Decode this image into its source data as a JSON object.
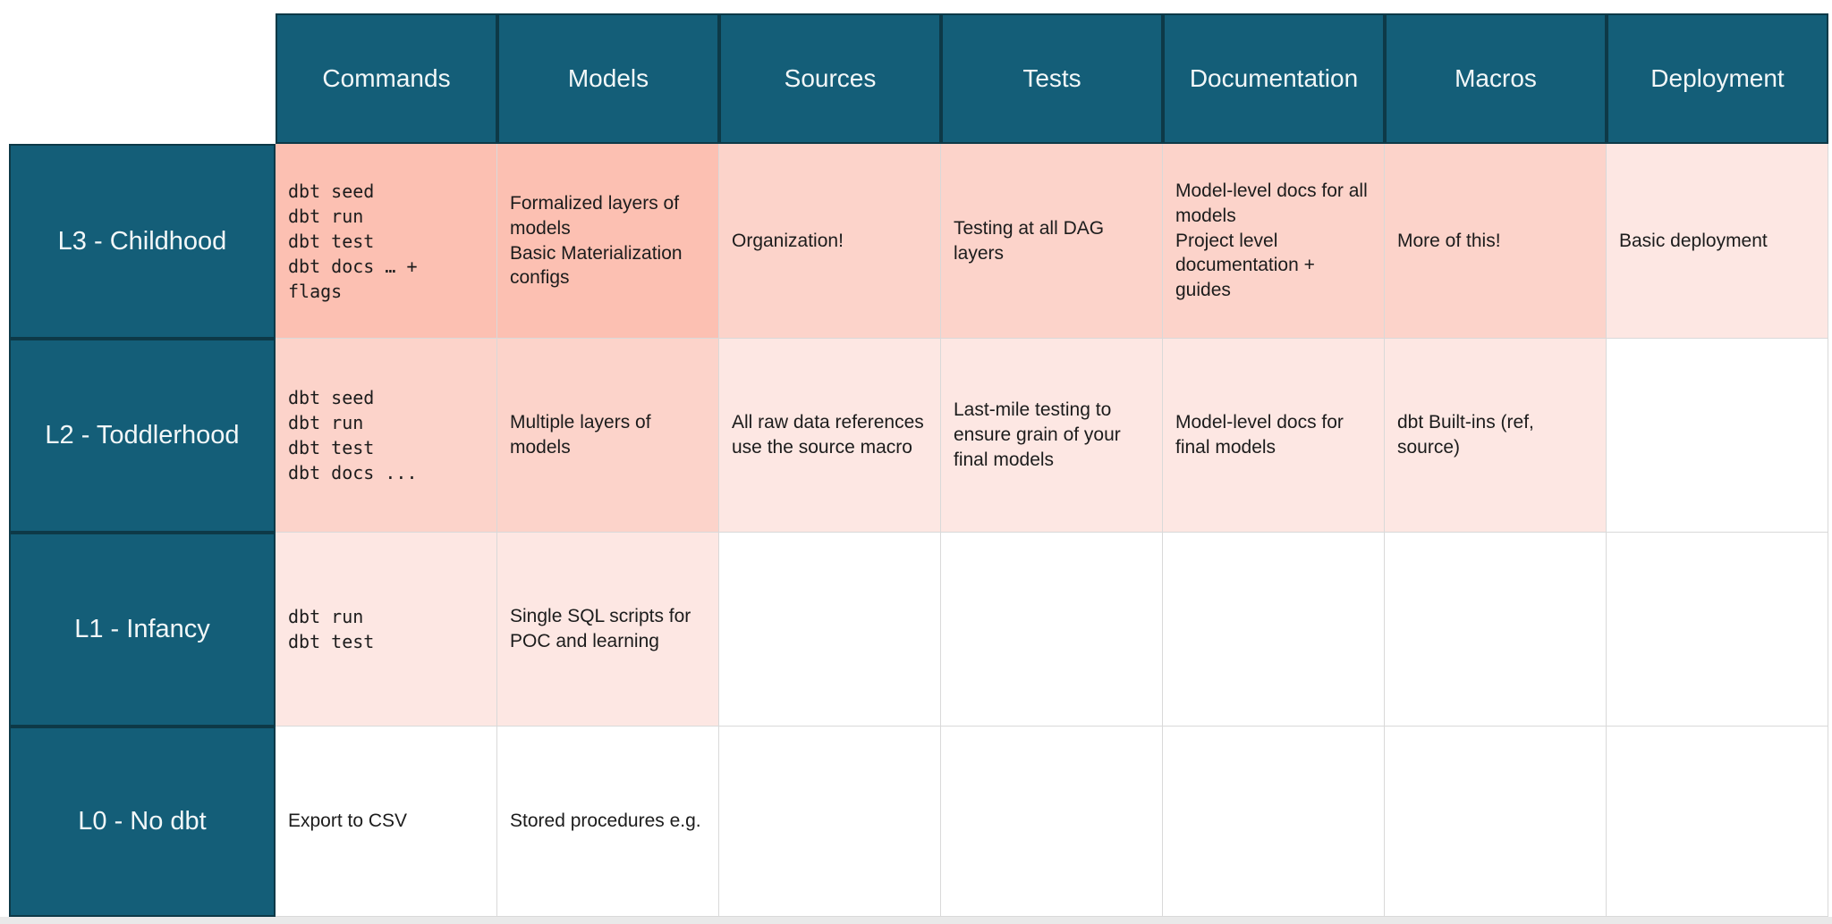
{
  "table": {
    "columns": [
      "Commands",
      "Models",
      "Sources",
      "Tests",
      "Documentation",
      "Macros",
      "Deployment"
    ],
    "rows": [
      {
        "id": "l3",
        "label": "L3 - Childhood",
        "cells": [
          {
            "text": "dbt seed\ndbt run\ndbt test\ndbt docs … +\nflags",
            "mono": true,
            "level": 3
          },
          {
            "text": "Formalized layers of models\nBasic Materialization configs",
            "mono": false,
            "level": 3
          },
          {
            "text": "Organization!",
            "mono": false,
            "level": 2
          },
          {
            "text": "Testing at all DAG layers",
            "mono": false,
            "level": 2
          },
          {
            "text": "Model-level docs for all models\nProject level documentation + guides",
            "mono": false,
            "level": 2
          },
          {
            "text": "More of this!",
            "mono": false,
            "level": 2
          },
          {
            "text": "Basic deployment",
            "mono": false,
            "level": 1
          }
        ]
      },
      {
        "id": "l2",
        "label": "L2 - Toddlerhood",
        "cells": [
          {
            "text": "dbt seed\ndbt run\ndbt test\ndbt docs ...",
            "mono": true,
            "level": 2
          },
          {
            "text": "Multiple layers of models",
            "mono": false,
            "level": 2
          },
          {
            "text": "All raw data references use the source macro",
            "mono": false,
            "level": 1
          },
          {
            "text": "Last-mile testing to ensure grain of your final models",
            "mono": false,
            "level": 1
          },
          {
            "text": "Model-level docs for final models",
            "mono": false,
            "level": 1
          },
          {
            "text": "dbt Built-ins (ref, source)",
            "mono": false,
            "level": 1
          },
          {
            "text": "",
            "mono": false,
            "level": 0
          }
        ]
      },
      {
        "id": "l1",
        "label": "L1 - Infancy",
        "cells": [
          {
            "text": "dbt run\ndbt test",
            "mono": true,
            "level": 1
          },
          {
            "text": "Single SQL scripts for POC and learning",
            "mono": false,
            "level": 1
          },
          {
            "text": "",
            "mono": false,
            "level": 0
          },
          {
            "text": "",
            "mono": false,
            "level": 0
          },
          {
            "text": "",
            "mono": false,
            "level": 0
          },
          {
            "text": "",
            "mono": false,
            "level": 0
          },
          {
            "text": "",
            "mono": false,
            "level": 0
          }
        ]
      },
      {
        "id": "l0",
        "label": "L0 - No dbt",
        "cells": [
          {
            "text": "Export to CSV",
            "mono": false,
            "level": 0
          },
          {
            "text": "Stored procedures e.g.",
            "mono": false,
            "level": 0
          },
          {
            "text": "",
            "mono": false,
            "level": 0
          },
          {
            "text": "",
            "mono": false,
            "level": 0
          },
          {
            "text": "",
            "mono": false,
            "level": 0
          },
          {
            "text": "",
            "mono": false,
            "level": 0
          },
          {
            "text": "",
            "mono": false,
            "level": 0
          }
        ]
      }
    ]
  },
  "colors": {
    "header_bg": "#145e78",
    "header_text": "#f2f7f8",
    "header_border": "#0d3947",
    "grid_line": "#d9d9d9",
    "body_text": "#1c1c1c",
    "level3": "#fcc0b2",
    "level2": "#fcd3ca",
    "level1": "#fde7e3",
    "level0": "#ffffff",
    "page_bottom_strip": "#e9e9e9"
  }
}
